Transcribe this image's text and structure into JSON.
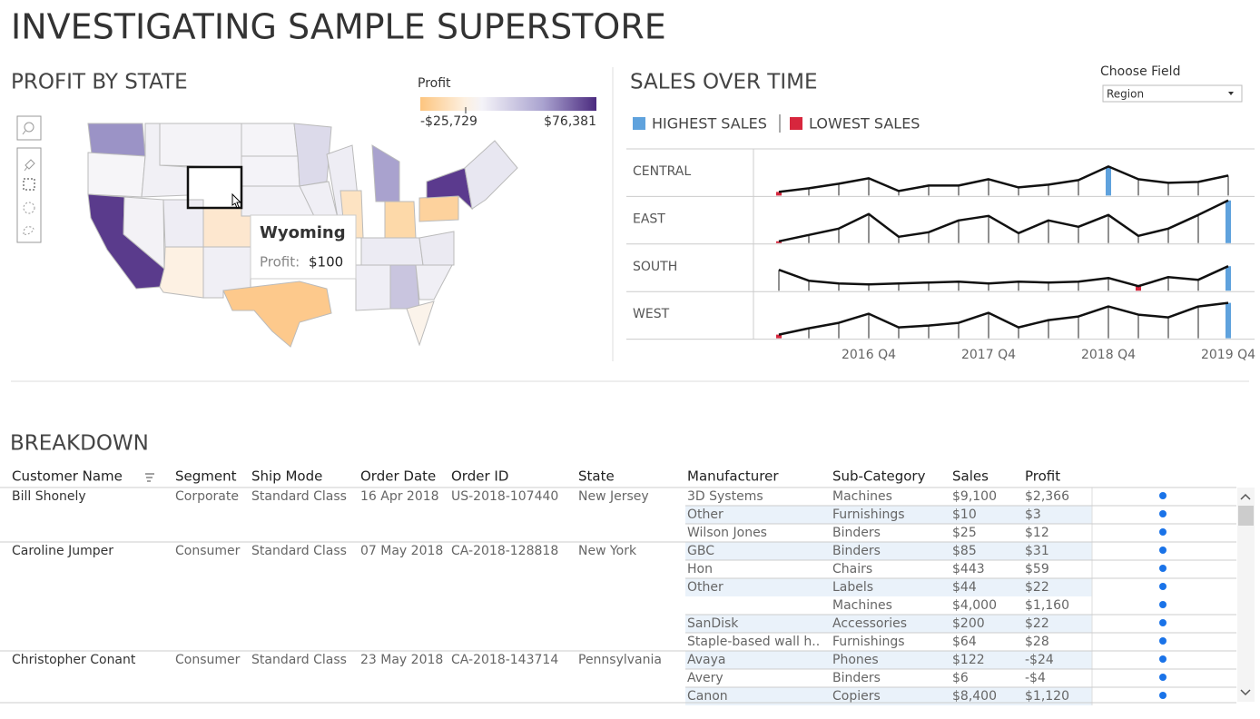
{
  "header": {
    "title": "INVESTIGATING SAMPLE SUPERSTORE"
  },
  "profit_map": {
    "title": "PROFIT BY STATE",
    "legend": {
      "title": "Profit",
      "min_label": "-$25,729",
      "max_label": "$76,381"
    },
    "tooltip": {
      "state": "Wyoming",
      "label": "Profit:",
      "value": "$100"
    }
  },
  "sales_over_time": {
    "title": "SALES OVER TIME",
    "legend": [
      {
        "label": "HIGHEST SALES",
        "color": "#5fa2dd"
      },
      {
        "label": "LOWEST SALES",
        "color": "#d7263d"
      }
    ],
    "control": {
      "label": "Choose Field",
      "value": "Region"
    },
    "x_labels": [
      "2016 Q4",
      "2017 Q4",
      "2018 Q4",
      "2019 Q4"
    ],
    "series": [
      {
        "name": "CENTRAL",
        "values": [
          4,
          8,
          13,
          19,
          5,
          11,
          11,
          18,
          9,
          12,
          17,
          32,
          18,
          14,
          15,
          22
        ]
      },
      {
        "name": "EAST",
        "values": [
          2,
          9,
          16,
          32,
          7,
          12,
          25,
          30,
          11,
          25,
          18,
          31,
          8,
          16,
          31,
          47
        ]
      },
      {
        "name": "SOUTH",
        "values": [
          23,
          11,
          8,
          7,
          8,
          9,
          10,
          8,
          10,
          9,
          10,
          14,
          5,
          15,
          12,
          27
        ]
      },
      {
        "name": "WEST",
        "values": [
          4,
          11,
          17,
          27,
          12,
          14,
          17,
          28,
          12,
          20,
          24,
          35,
          26,
          23,
          35,
          39
        ]
      }
    ]
  },
  "breakdown": {
    "title": "BREAKDOWN",
    "columns": [
      "Customer Name",
      "Segment",
      "Ship Mode",
      "Order Date",
      "Order ID",
      "State",
      "Manufacturer",
      "Sub-Category",
      "Sales",
      "Profit"
    ],
    "customers": [
      {
        "name": "Bill Shonely",
        "segment": "Corporate",
        "ship_mode": "Standard Class",
        "order_date": "16 Apr 2018",
        "order_id": "US-2018-107440",
        "state": "New Jersey",
        "manufacturers": [
          {
            "name": "3D Systems",
            "items": [
              {
                "sub_category": "Machines",
                "sales": "$9,100",
                "profit": "$2,366"
              }
            ]
          },
          {
            "name": "Other",
            "items": [
              {
                "sub_category": "Furnishings",
                "sales": "$10",
                "profit": "$3"
              }
            ]
          },
          {
            "name": "Wilson Jones",
            "items": [
              {
                "sub_category": "Binders",
                "sales": "$25",
                "profit": "$12"
              }
            ]
          }
        ]
      },
      {
        "name": "Caroline Jumper",
        "segment": "Consumer",
        "ship_mode": "Standard Class",
        "order_date": "07 May 2018",
        "order_id": "CA-2018-128818",
        "state": "New York",
        "manufacturers": [
          {
            "name": "GBC",
            "items": [
              {
                "sub_category": "Binders",
                "sales": "$85",
                "profit": "$31"
              }
            ]
          },
          {
            "name": "Hon",
            "items": [
              {
                "sub_category": "Chairs",
                "sales": "$443",
                "profit": "$59"
              }
            ]
          },
          {
            "name": "Other",
            "items": [
              {
                "sub_category": "Labels",
                "sales": "$44",
                "profit": "$22"
              },
              {
                "sub_category": "Machines",
                "sales": "$4,000",
                "profit": "$1,160"
              }
            ]
          },
          {
            "name": "SanDisk",
            "items": [
              {
                "sub_category": "Accessories",
                "sales": "$200",
                "profit": "$22"
              }
            ]
          },
          {
            "name": "Staple-based wall h..",
            "items": [
              {
                "sub_category": "Furnishings",
                "sales": "$64",
                "profit": "$28"
              }
            ]
          }
        ]
      },
      {
        "name": "Christopher Conant",
        "segment": "Consumer",
        "ship_mode": "Standard Class",
        "order_date": "23 May 2018",
        "order_id": "CA-2018-143714",
        "state": "Pennsylvania",
        "manufacturers": [
          {
            "name": "Avaya",
            "items": [
              {
                "sub_category": "Phones",
                "sales": "$122",
                "profit": "-$24"
              }
            ]
          },
          {
            "name": "Avery",
            "items": [
              {
                "sub_category": "Binders",
                "sales": "$6",
                "profit": "-$4"
              }
            ]
          },
          {
            "name": "Canon",
            "items": [
              {
                "sub_category": "Copiers",
                "sales": "$8,400",
                "profit": "$1,120"
              }
            ]
          }
        ]
      }
    ]
  }
}
